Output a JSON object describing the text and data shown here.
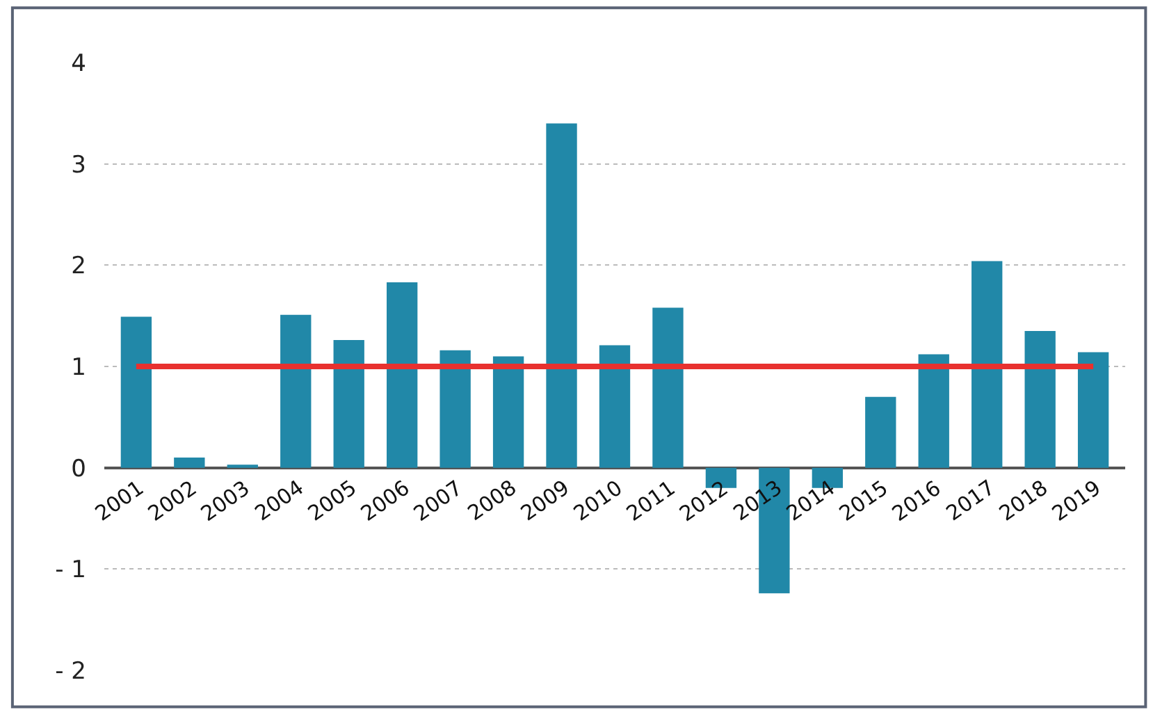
{
  "chart_data": {
    "type": "bar",
    "categories": [
      "2001",
      "2002",
      "2003",
      "2004",
      "2005",
      "2006",
      "2007",
      "2008",
      "2009",
      "2010",
      "2011",
      "2012",
      "2013",
      "2014",
      "2015",
      "2016",
      "2017",
      "2018",
      "2019"
    ],
    "values": [
      1.49,
      0.1,
      0.03,
      1.51,
      1.26,
      1.83,
      1.16,
      1.1,
      3.4,
      1.21,
      1.58,
      -0.2,
      -1.24,
      -0.2,
      0.7,
      1.12,
      2.04,
      1.35,
      1.14
    ],
    "color": "#2188a8",
    "ylim": [
      -2,
      4
    ],
    "yticks": [
      4,
      3,
      2,
      1,
      0,
      {
        "value": -1,
        "label": "- 1"
      },
      {
        "value": -2,
        "label": "- 2"
      }
    ],
    "grid": "y",
    "ref_lines": [
      {
        "axis": "y",
        "value": 1,
        "label": null,
        "color": "#e8312f"
      }
    ]
  }
}
